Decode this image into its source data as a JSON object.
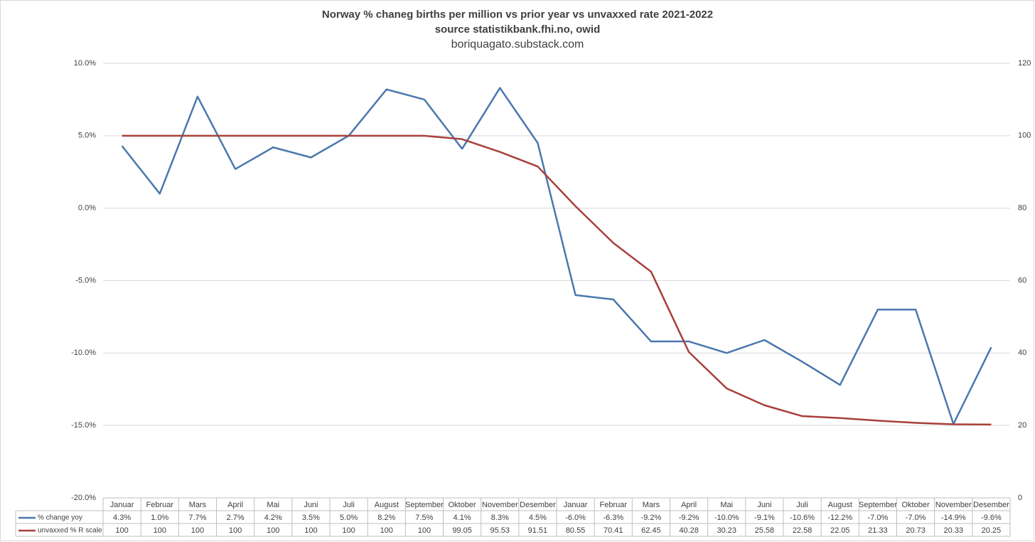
{
  "chart_data": {
    "type": "line",
    "title": [
      "Norway % chaneg births per million vs prior year vs unvaxxed rate 2021-2022",
      "source statistikbank.fhi.no, owid"
    ],
    "subtitle": "boriquagato.substack.com",
    "categories": [
      "Januar",
      "Februar",
      "Mars",
      "April",
      "Mai",
      "Juni",
      "Juli",
      "August",
      "September",
      "Oktober",
      "November",
      "Desember",
      "Januar",
      "Februar",
      "Mars",
      "April",
      "Mai",
      "Juni",
      "Juli",
      "August",
      "September",
      "Oktober",
      "November",
      "Desember"
    ],
    "series": [
      {
        "name": "% change yoy",
        "color": "#4a78ad",
        "values": [
          4.3,
          1.0,
          7.7,
          2.7,
          4.2,
          3.5,
          5.0,
          8.2,
          7.5,
          4.1,
          8.3,
          4.5,
          -6.0,
          -6.3,
          -9.2,
          -9.2,
          -10.0,
          -9.1,
          -10.6,
          -12.2,
          -7.0,
          -7.0,
          -14.9,
          -9.6
        ],
        "value_labels": [
          "4.3%",
          "1.0%",
          "7.7%",
          "2.7%",
          "4.2%",
          "3.5%",
          "5.0%",
          "8.2%",
          "7.5%",
          "4.1%",
          "8.3%",
          "4.5%",
          "-6.0%",
          "-6.3%",
          "-9.2%",
          "-9.2%",
          "-10.0%",
          "-9.1%",
          "-10.6%",
          "-12.2%",
          "-7.0%",
          "-7.0%",
          "-14.9%",
          "-9.6%"
        ]
      },
      {
        "name": "unvaxxed % R scale",
        "color": "#a8403c",
        "axis": "y2",
        "values": [
          100,
          100,
          100,
          100,
          100,
          100,
          100,
          100,
          100,
          99.05,
          95.53,
          91.51,
          80.55,
          70.41,
          62.45,
          40.28,
          30.23,
          25.58,
          22.58,
          22.05,
          21.33,
          20.73,
          20.33,
          20.25
        ]
      }
    ],
    "ylim": [
      -20,
      10
    ],
    "yticks": [
      {
        "value": -20,
        "label": "-20.0%"
      },
      {
        "value": -15,
        "label": "-15.0%"
      },
      {
        "value": -10,
        "label": "-10.0%"
      },
      {
        "value": -5,
        "label": "-5.0%"
      },
      {
        "value": 0,
        "label": "0.0%"
      },
      {
        "value": 5,
        "label": "5.0%"
      },
      {
        "value": 10,
        "label": "10.0%"
      }
    ],
    "y2lim": [
      0,
      120
    ],
    "y2ticks": [
      0,
      20,
      40,
      60,
      80,
      100,
      120
    ],
    "grid": true
  }
}
